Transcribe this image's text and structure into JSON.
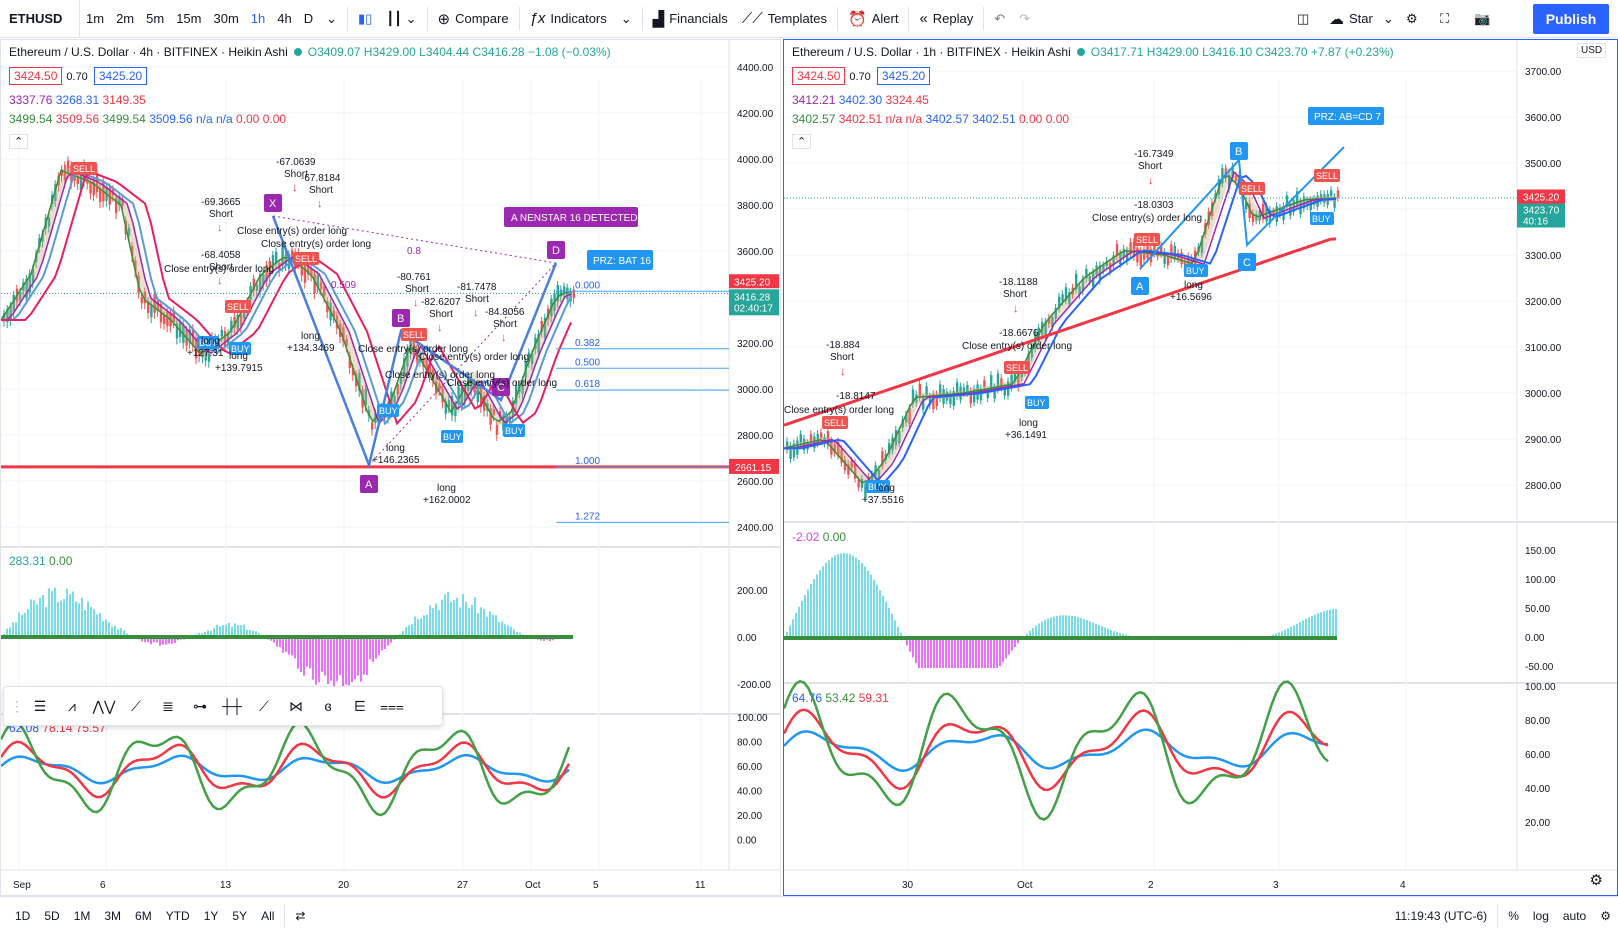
{
  "toolbar": {
    "symbol": "ETHUSD",
    "intervals": [
      "1m",
      "2m",
      "5m",
      "15m",
      "30m",
      "1h",
      "4h",
      "D"
    ],
    "active_interval": "1h",
    "compare": "Compare",
    "indicators": "Indicators",
    "financials": "Financials",
    "templates": "Templates",
    "alert": "Alert",
    "replay": "Replay",
    "star": "Star",
    "publish": "Publish"
  },
  "bottombar": {
    "ranges": [
      "1D",
      "5D",
      "1M",
      "3M",
      "6M",
      "YTD",
      "1Y",
      "5Y",
      "All"
    ],
    "clock": "11:19:43 (UTC-6)",
    "percent": "%",
    "log": "log",
    "auto": "auto"
  },
  "left": {
    "title": "Ethereum / U.S. Dollar · 4h · BITFINEX · Heikin Ashi",
    "ohlc": "O3409.07 H3429.00 L3404.44 C3416.28 −1.08 (−0.03%)",
    "bid": "3424.50",
    "spread": "0.70",
    "ask": "3425.20",
    "ind1": [
      "3337.76",
      "3268.31",
      "3149.35"
    ],
    "ind2": [
      "3499.54",
      "3509.56",
      "3499.54",
      "3509.56",
      "n/a",
      "n/a",
      "0.00",
      "0.00"
    ],
    "price_axis": [
      "4400.00",
      "4200.00",
      "4000.00",
      "3800.00",
      "3600.00",
      "3400.00",
      "3200.00",
      "3000.00",
      "2800.00",
      "2600.00",
      "2400.00"
    ],
    "last_price": "3425.20",
    "cur_price": "3416.28",
    "countdown": "02:40:17",
    "red_line_price": "2661.15",
    "fib_levels": [
      "0.000",
      "0.382",
      "0.500",
      "0.618",
      "1.000",
      "1.272"
    ],
    "fib_0_8": "0.8",
    "fib_509": "0.509",
    "pattern_banner": "A NENSTAR 16 DETECTED",
    "prz": "PRZ: BAT 16",
    "point_labels": [
      "X",
      "A",
      "B",
      "C",
      "D"
    ],
    "sub1_legend": [
      "283.31",
      "0.00"
    ],
    "sub1_axis": [
      "200.00",
      "0.00",
      "-200.00"
    ],
    "sub2_legend": [
      "62.08",
      "78.14",
      "75.57"
    ],
    "sub2_axis": [
      "100.00",
      "80.00",
      "60.00",
      "40.00",
      "20.00",
      "0.00"
    ],
    "time_axis": [
      "Sep",
      "6",
      "13",
      "20",
      "27",
      "Oct",
      "5",
      "11"
    ],
    "annotations": [
      {
        "t": "-69.3665",
        "s": "Short"
      },
      {
        "t": "-68.4058",
        "s": "Short"
      },
      {
        "t": "-67.0639",
        "s": "Short"
      },
      {
        "t": "-67.8184",
        "s": "Short"
      },
      {
        "t": "-80.761",
        "s": "Short"
      },
      {
        "t": "-81.7478",
        "s": "Short"
      },
      {
        "t": "-82.6207",
        "s": "Short"
      },
      {
        "t": "-84.8056",
        "s": "Short"
      }
    ],
    "longs": [
      "+127.31",
      "+139.7915",
      "+134.3469",
      "+146.2365",
      "+162.0002"
    ],
    "close_text": "Close entry(s) order long",
    "sell": "SELL",
    "buy": "BUY",
    "long": "long"
  },
  "right": {
    "title": "Ethereum / U.S. Dollar · 1h · BITFINEX · Heikin Ashi",
    "ohlc": "O3417.71 H3429.00 L3416.10 C3423.70 +7.87 (+0.23%)",
    "bid": "3424.50",
    "spread": "0.70",
    "ask": "3425.20",
    "ind1": [
      "3412.21",
      "3402.30",
      "3324.45"
    ],
    "ind2": [
      "3402.57",
      "3402.51",
      "n/a",
      "n/a",
      "3402.57",
      "3402.51",
      "0.00",
      "0.00"
    ],
    "currency": "USD",
    "price_axis": [
      "3700.00",
      "3600.00",
      "3500.00",
      "3400.00",
      "3300.00",
      "3200.00",
      "3100.00",
      "3000.00",
      "2900.00",
      "2800.00"
    ],
    "last_price": "3425.20",
    "cur_price": "3423.70",
    "countdown": "40:16",
    "prz": "PRZ: AB=CD 7",
    "point_labels": [
      "A",
      "B",
      "C"
    ],
    "sub1_legend": [
      "-2.02",
      "0.00"
    ],
    "sub1_axis": [
      "150.00",
      "100.00",
      "50.00",
      "0.00",
      "-50.00"
    ],
    "sub2_legend": [
      "64.76",
      "53.42",
      "59.31"
    ],
    "sub2_axis": [
      "100.00",
      "80.00",
      "60.00",
      "40.00",
      "20.00"
    ],
    "time_axis": [
      "30",
      "Oct",
      "2",
      "3",
      "4"
    ],
    "annotations": [
      {
        "t": "-18.884",
        "s": "Short"
      },
      {
        "t": "-18.8147",
        "s": ""
      },
      {
        "t": "-18.1188",
        "s": "Short"
      },
      {
        "t": "-18.6676",
        "s": ""
      },
      {
        "t": "-16.7349",
        "s": "Short"
      },
      {
        "t": "-18.0303",
        "s": ""
      }
    ],
    "longs": [
      "+37.5516",
      "+36.1491",
      "+16.5696"
    ],
    "close_text": "Close entry(s) order long",
    "sell": "SELL",
    "buy": "BUY",
    "long": "long"
  },
  "colors": {
    "accent": "#2962ff",
    "red": "#f23645",
    "green": "#26a69a",
    "purple": "#9c27b0",
    "teal": "#4dd0e1",
    "pink": "#e040fb"
  }
}
